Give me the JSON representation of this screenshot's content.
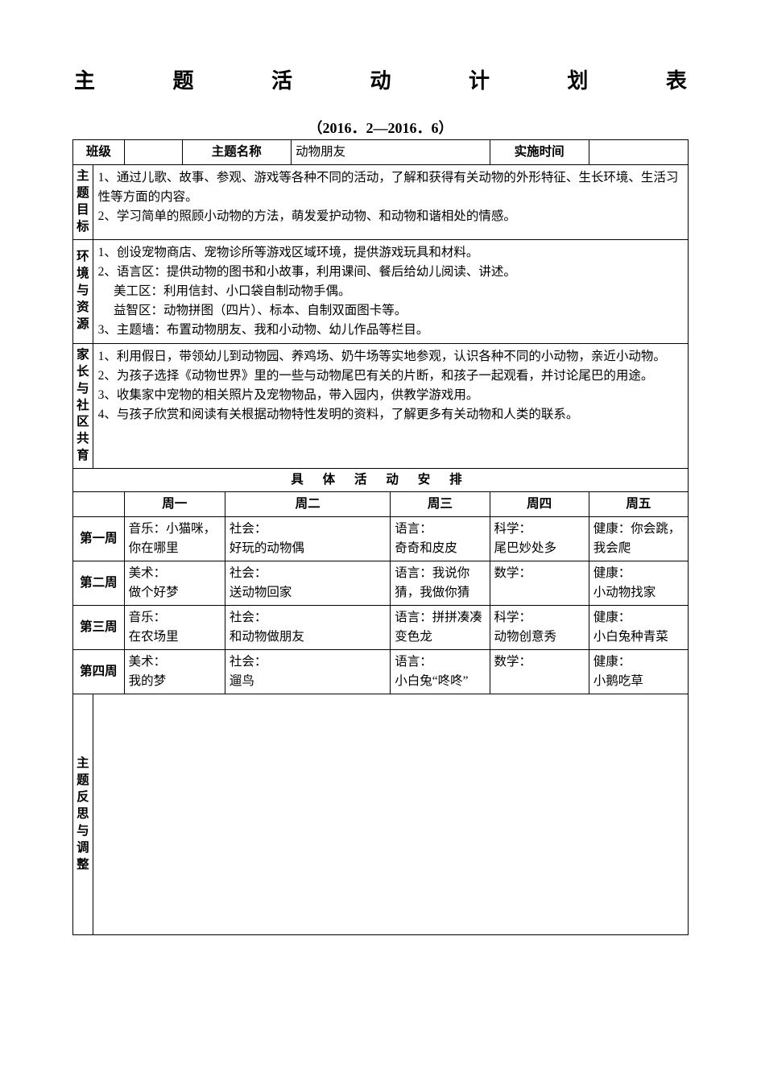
{
  "doc": {
    "title_chars": [
      "主",
      "题",
      "活",
      "动",
      "计",
      "划",
      "表"
    ],
    "date_range": "（2016．2—2016．6）",
    "header": {
      "class_label": "班级",
      "class_value": "",
      "topic_label": "主题名称",
      "topic_value": "动物朋友",
      "time_label": "实施时间",
      "time_value": ""
    },
    "goals": {
      "label": "主题目标",
      "text": "1、通过儿歌、故事、参观、游戏等各种不同的活动，了解和获得有关动物的外形特征、生长环境、生活习性等方面的内容。\n2、学习简单的照顾小动物的方法，萌发爱护动物、和动物和谐相处的情感。"
    },
    "env": {
      "label": "环境与资源",
      "text": "1、创设宠物商店、宠物诊所等游戏区域环境，提供游戏玩具和材料。\n2、语言区：提供动物的图书和小故事，利用课间、餐后给幼儿阅读、讲述。\n　 美工区：利用信封、小口袋自制动物手偶。\n　 益智区：动物拼图（四片）、标本、自制双面图卡等。\n3、主题墙：布置动物朋友、我和小动物、幼儿作品等栏目。"
    },
    "home": {
      "label": "家长与社区共育",
      "text": "1、利用假日，带领幼儿到动物园、养鸡场、奶牛场等实地参观，认识各种不同的小动物，亲近小动物。\n2、为孩子选择《动物世界》里的一些与动物尾巴有关的片断，和孩子一起观看，并讨论尾巴的用途。\n3、收集家中宠物的相关照片及宠物物品，带入园内，供教学游戏用。\n4、与孩子欣赏和阅读有关根据动物特性发明的资料，了解更多有关动物和人类的联系。"
    },
    "schedule_title": "具 体 活 动 安 排",
    "days": [
      "周一",
      "周二",
      "周三",
      "周四",
      "周五"
    ],
    "weeks": [
      {
        "label": "第一周",
        "cells": [
          "音乐：小猫咪，你在哪里",
          "社会：\n好玩的动物偶",
          "语言：\n奇奇和皮皮",
          "科学：\n尾巴妙处多",
          "健康：你会跳，我会爬"
        ]
      },
      {
        "label": "第二周",
        "cells": [
          "美术：\n做个好梦",
          "社会：\n送动物回家",
          "语言：我说你猜，我做你猜",
          "数学：",
          "健康：\n小动物找家"
        ]
      },
      {
        "label": "第三周",
        "cells": [
          "音乐：\n在农场里",
          "社会：\n和动物做朋友",
          "语言：拼拼凑凑变色龙",
          "科学：\n动物创意秀",
          "健康：\n小白兔种青菜"
        ]
      },
      {
        "label": "第四周",
        "cells": [
          "美术：\n我的梦",
          "社会：\n遛鸟",
          "语言：\n小白兔“咚咚”",
          "数学：",
          "健康：\n小鹅吃草"
        ]
      }
    ],
    "reflect_label": "主题反思与调整"
  },
  "style": {
    "border_color": "#000000",
    "bg": "#ffffff",
    "text_color": "#000000"
  }
}
